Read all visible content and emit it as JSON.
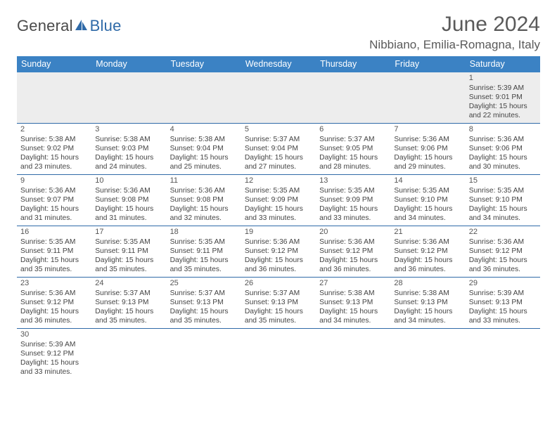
{
  "brand": {
    "part1": "General",
    "part2": "Blue"
  },
  "title": "June 2024",
  "location": "Nibbiano, Emilia-Romagna, Italy",
  "colors": {
    "header_bg": "#3b82c4",
    "header_text": "#ffffff",
    "row_border": "#2f6aa8",
    "first_row_bg": "#ededed",
    "brand_blue": "#2f6aa8",
    "text": "#444444"
  },
  "day_names": [
    "Sunday",
    "Monday",
    "Tuesday",
    "Wednesday",
    "Thursday",
    "Friday",
    "Saturday"
  ],
  "weeks": [
    [
      null,
      null,
      null,
      null,
      null,
      null,
      {
        "d": "1",
        "sr": "5:39 AM",
        "ss": "9:01 PM",
        "dl": "15 hours and 22 minutes."
      }
    ],
    [
      {
        "d": "2",
        "sr": "5:38 AM",
        "ss": "9:02 PM",
        "dl": "15 hours and 23 minutes."
      },
      {
        "d": "3",
        "sr": "5:38 AM",
        "ss": "9:03 PM",
        "dl": "15 hours and 24 minutes."
      },
      {
        "d": "4",
        "sr": "5:38 AM",
        "ss": "9:04 PM",
        "dl": "15 hours and 25 minutes."
      },
      {
        "d": "5",
        "sr": "5:37 AM",
        "ss": "9:04 PM",
        "dl": "15 hours and 27 minutes."
      },
      {
        "d": "6",
        "sr": "5:37 AM",
        "ss": "9:05 PM",
        "dl": "15 hours and 28 minutes."
      },
      {
        "d": "7",
        "sr": "5:36 AM",
        "ss": "9:06 PM",
        "dl": "15 hours and 29 minutes."
      },
      {
        "d": "8",
        "sr": "5:36 AM",
        "ss": "9:06 PM",
        "dl": "15 hours and 30 minutes."
      }
    ],
    [
      {
        "d": "9",
        "sr": "5:36 AM",
        "ss": "9:07 PM",
        "dl": "15 hours and 31 minutes."
      },
      {
        "d": "10",
        "sr": "5:36 AM",
        "ss": "9:08 PM",
        "dl": "15 hours and 31 minutes."
      },
      {
        "d": "11",
        "sr": "5:36 AM",
        "ss": "9:08 PM",
        "dl": "15 hours and 32 minutes."
      },
      {
        "d": "12",
        "sr": "5:35 AM",
        "ss": "9:09 PM",
        "dl": "15 hours and 33 minutes."
      },
      {
        "d": "13",
        "sr": "5:35 AM",
        "ss": "9:09 PM",
        "dl": "15 hours and 33 minutes."
      },
      {
        "d": "14",
        "sr": "5:35 AM",
        "ss": "9:10 PM",
        "dl": "15 hours and 34 minutes."
      },
      {
        "d": "15",
        "sr": "5:35 AM",
        "ss": "9:10 PM",
        "dl": "15 hours and 34 minutes."
      }
    ],
    [
      {
        "d": "16",
        "sr": "5:35 AM",
        "ss": "9:11 PM",
        "dl": "15 hours and 35 minutes."
      },
      {
        "d": "17",
        "sr": "5:35 AM",
        "ss": "9:11 PM",
        "dl": "15 hours and 35 minutes."
      },
      {
        "d": "18",
        "sr": "5:35 AM",
        "ss": "9:11 PM",
        "dl": "15 hours and 35 minutes."
      },
      {
        "d": "19",
        "sr": "5:36 AM",
        "ss": "9:12 PM",
        "dl": "15 hours and 36 minutes."
      },
      {
        "d": "20",
        "sr": "5:36 AM",
        "ss": "9:12 PM",
        "dl": "15 hours and 36 minutes."
      },
      {
        "d": "21",
        "sr": "5:36 AM",
        "ss": "9:12 PM",
        "dl": "15 hours and 36 minutes."
      },
      {
        "d": "22",
        "sr": "5:36 AM",
        "ss": "9:12 PM",
        "dl": "15 hours and 36 minutes."
      }
    ],
    [
      {
        "d": "23",
        "sr": "5:36 AM",
        "ss": "9:12 PM",
        "dl": "15 hours and 36 minutes."
      },
      {
        "d": "24",
        "sr": "5:37 AM",
        "ss": "9:13 PM",
        "dl": "15 hours and 35 minutes."
      },
      {
        "d": "25",
        "sr": "5:37 AM",
        "ss": "9:13 PM",
        "dl": "15 hours and 35 minutes."
      },
      {
        "d": "26",
        "sr": "5:37 AM",
        "ss": "9:13 PM",
        "dl": "15 hours and 35 minutes."
      },
      {
        "d": "27",
        "sr": "5:38 AM",
        "ss": "9:13 PM",
        "dl": "15 hours and 34 minutes."
      },
      {
        "d": "28",
        "sr": "5:38 AM",
        "ss": "9:13 PM",
        "dl": "15 hours and 34 minutes."
      },
      {
        "d": "29",
        "sr": "5:39 AM",
        "ss": "9:13 PM",
        "dl": "15 hours and 33 minutes."
      }
    ],
    [
      {
        "d": "30",
        "sr": "5:39 AM",
        "ss": "9:12 PM",
        "dl": "15 hours and 33 minutes."
      },
      null,
      null,
      null,
      null,
      null,
      null
    ]
  ],
  "labels": {
    "sunrise": "Sunrise:",
    "sunset": "Sunset:",
    "daylight": "Daylight:"
  }
}
